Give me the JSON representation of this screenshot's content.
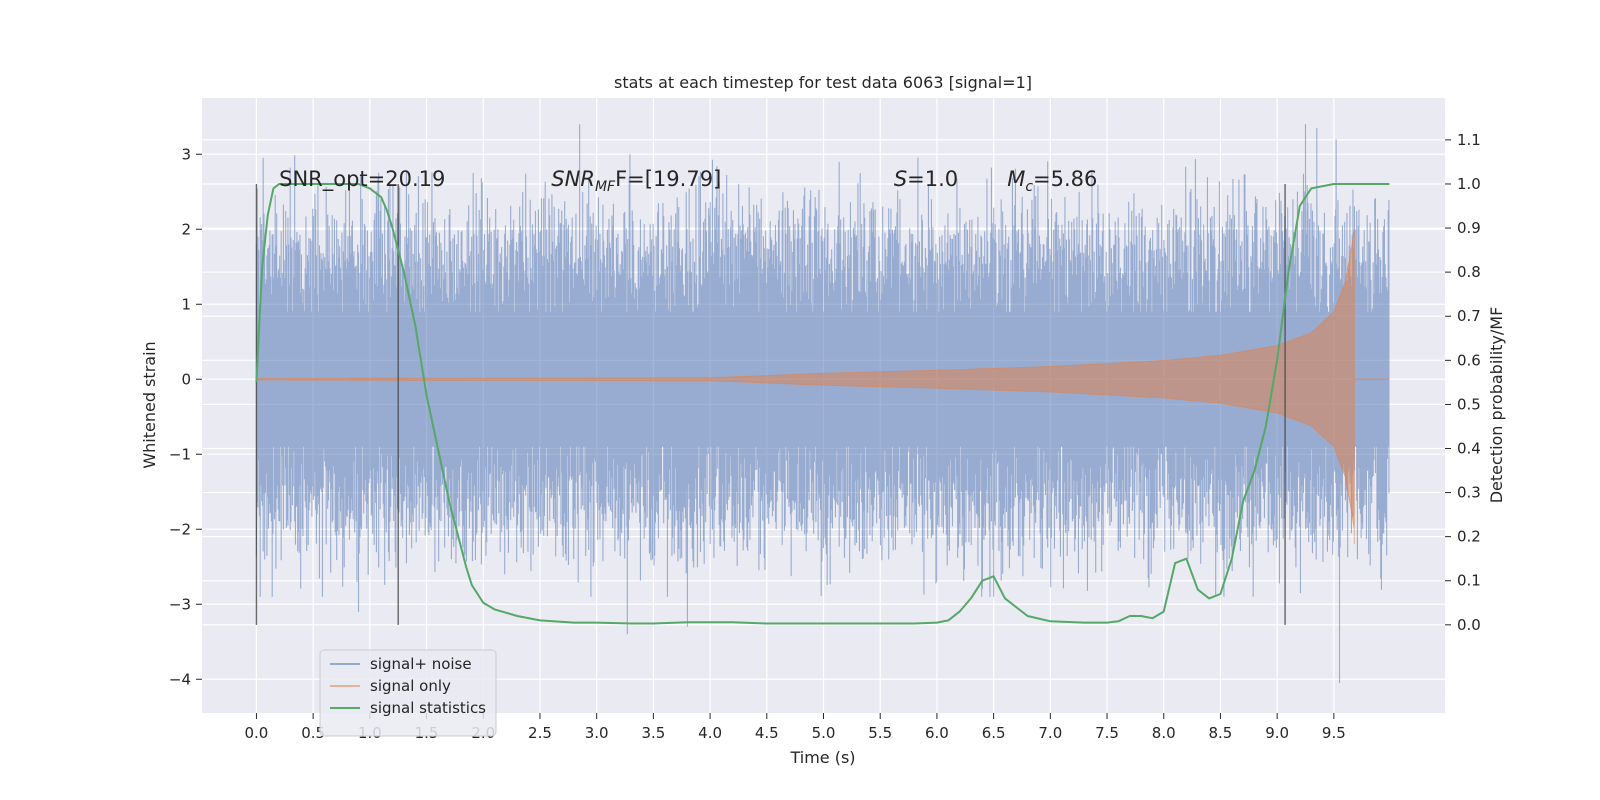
{
  "chart_data": {
    "type": "line",
    "title": "stats at each timestep for test data 6063 [signal=1]",
    "xlabel": "Time (s)",
    "ylabel": "Whitened strain",
    "ylabel_right": "Detection probability/MF",
    "xlim": [
      -0.48,
      10.48
    ],
    "ylim": [
      -4.45,
      3.75
    ],
    "ylim_right": [
      -0.2,
      1.195
    ],
    "x_ticks": [
      "0.0",
      "0.5",
      "1.0",
      "1.5",
      "2.0",
      "2.5",
      "3.0",
      "3.5",
      "4.0",
      "4.5",
      "5.0",
      "5.5",
      "6.0",
      "6.5",
      "7.0",
      "7.5",
      "8.0",
      "8.5",
      "9.0",
      "9.5"
    ],
    "y_ticks": [
      "3",
      "2",
      "1",
      "0",
      "−1",
      "−2",
      "−3",
      "−4"
    ],
    "y_right_ticks": [
      "1.1",
      "1.0",
      "0.9",
      "0.8",
      "0.7",
      "0.6",
      "0.5",
      "0.4",
      "0.3",
      "0.2",
      "0.1",
      "0.0"
    ],
    "grid": true,
    "legend_position": "lower-left",
    "annotations": [
      {
        "id": "snr-opt",
        "text": "SNR_opt=20.19"
      },
      {
        "id": "snr-mf",
        "italic": "SNR",
        "sub": "MF",
        "rest": "F=[19.79]"
      },
      {
        "id": "s-val",
        "italic": "S",
        "rest": "=1.0"
      },
      {
        "id": "mc-val",
        "italic": "M",
        "sub": "c",
        "rest": "=5.86"
      }
    ],
    "vertical_lines_x": [
      0.0,
      1.25,
      9.07
    ],
    "series": [
      {
        "name": "signal+ noise",
        "color": "#4c72b0",
        "style": "dense-noise",
        "time_range": [
          0.0,
          9.99
        ],
        "envelope_typical": 1.7,
        "peaks": [
          [
            2.85,
            3.4
          ],
          [
            9.25,
            3.4
          ],
          [
            9.35,
            3.35
          ],
          [
            9.52,
            3.2
          ],
          [
            3.27,
            -3.4
          ],
          [
            9.55,
            -4.05
          ],
          [
            3.8,
            -3.3
          ],
          [
            0.9,
            -3.1
          ],
          [
            6.5,
            -2.9
          ]
        ]
      },
      {
        "name": "signal only",
        "color": "#dd8452",
        "style": "chirp",
        "time_range": [
          0.0,
          9.99
        ],
        "merger_time": 9.68,
        "envelope": [
          [
            0.0,
            0.01
          ],
          [
            4.0,
            0.02
          ],
          [
            4.5,
            0.05
          ],
          [
            5.0,
            0.08
          ],
          [
            6.0,
            0.12
          ],
          [
            7.0,
            0.17
          ],
          [
            8.0,
            0.25
          ],
          [
            8.5,
            0.32
          ],
          [
            9.0,
            0.45
          ],
          [
            9.3,
            0.62
          ],
          [
            9.5,
            0.9
          ],
          [
            9.6,
            1.3
          ],
          [
            9.66,
            1.8
          ],
          [
            9.68,
            2.0
          ]
        ]
      },
      {
        "name": "signal statistics",
        "color": "#55a868",
        "style": "line",
        "axis": "right",
        "x": [
          0.0,
          0.05,
          0.1,
          0.15,
          0.2,
          0.3,
          0.5,
          0.7,
          0.9,
          1.0,
          1.1,
          1.15,
          1.2,
          1.25,
          1.3,
          1.35,
          1.4,
          1.5,
          1.6,
          1.7,
          1.8,
          1.85,
          1.9,
          2.0,
          2.1,
          2.3,
          2.5,
          2.8,
          3.0,
          3.3,
          3.5,
          3.8,
          4.0,
          4.2,
          4.5,
          5.0,
          5.5,
          5.8,
          6.0,
          6.1,
          6.2,
          6.3,
          6.4,
          6.5,
          6.6,
          6.8,
          7.0,
          7.3,
          7.5,
          7.6,
          7.7,
          7.8,
          7.9,
          8.0,
          8.1,
          8.2,
          8.3,
          8.4,
          8.5,
          8.6,
          8.7,
          8.8,
          8.9,
          9.0,
          9.1,
          9.2,
          9.3,
          9.5,
          9.7,
          9.99
        ],
        "values": [
          0.55,
          0.81,
          0.93,
          0.99,
          1.0,
          1.0,
          1.0,
          1.0,
          1.0,
          0.99,
          0.97,
          0.94,
          0.9,
          0.85,
          0.8,
          0.74,
          0.68,
          0.52,
          0.4,
          0.28,
          0.18,
          0.13,
          0.09,
          0.05,
          0.035,
          0.02,
          0.01,
          0.005,
          0.005,
          0.003,
          0.003,
          0.006,
          0.006,
          0.006,
          0.003,
          0.003,
          0.003,
          0.003,
          0.005,
          0.01,
          0.03,
          0.06,
          0.1,
          0.11,
          0.06,
          0.02,
          0.008,
          0.005,
          0.005,
          0.008,
          0.02,
          0.02,
          0.015,
          0.03,
          0.14,
          0.15,
          0.08,
          0.06,
          0.07,
          0.15,
          0.28,
          0.35,
          0.45,
          0.6,
          0.8,
          0.95,
          0.99,
          1.0,
          1.0,
          1.0
        ]
      }
    ]
  }
}
